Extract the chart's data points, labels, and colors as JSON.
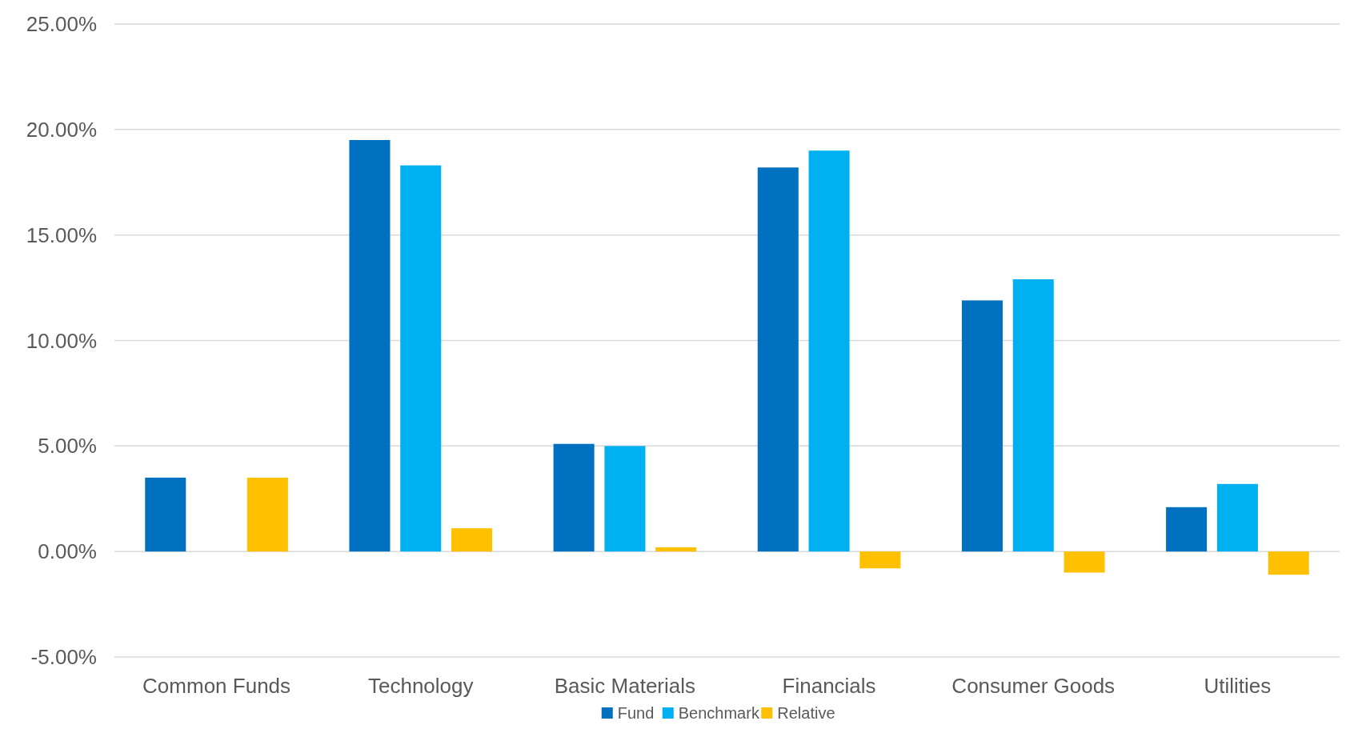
{
  "chart_data": {
    "type": "bar",
    "categories": [
      "Common Funds",
      "Technology",
      "Basic Materials",
      "Financials",
      "Consumer Goods",
      "Utilities"
    ],
    "series": [
      {
        "name": "Fund",
        "color": "#0070c0",
        "values": [
          3.5,
          19.5,
          5.1,
          18.2,
          11.9,
          2.1
        ]
      },
      {
        "name": "Benchmark",
        "color": "#00b0f0",
        "values": [
          null,
          18.3,
          5.0,
          19.0,
          12.9,
          3.2
        ]
      },
      {
        "name": "Relative",
        "color": "#ffc000",
        "values": [
          3.5,
          1.1,
          0.2,
          -0.8,
          -1.0,
          -1.1
        ]
      }
    ],
    "ylim": [
      -5,
      25
    ],
    "yticks": [
      {
        "value": -5,
        "label": "-5.00%"
      },
      {
        "value": 0,
        "label": "0.00%"
      },
      {
        "value": 5,
        "label": "5.00%"
      },
      {
        "value": 10,
        "label": "10.00%"
      },
      {
        "value": 15,
        "label": "15.00%"
      },
      {
        "value": 20,
        "label": "20.00%"
      },
      {
        "value": 25,
        "label": "25.00%"
      }
    ],
    "grid": "y",
    "legend": "bottom"
  }
}
